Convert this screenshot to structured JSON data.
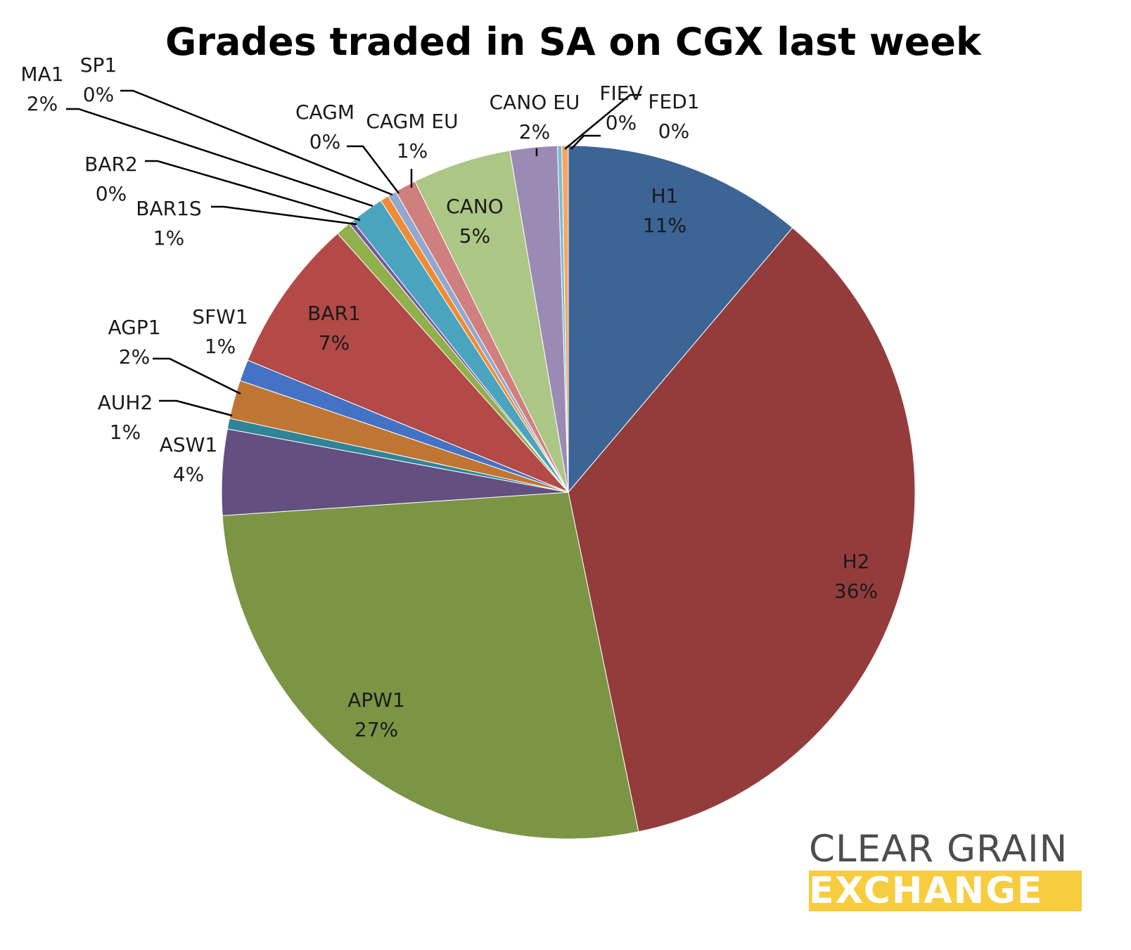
{
  "chart_data": {
    "type": "pie",
    "title": "Grades traded in SA on CGX last week",
    "start_angle": "12 o'clock",
    "direction": "clockwise",
    "slices": [
      {
        "name": "H1",
        "value": 11.2,
        "label": "11%",
        "color": "#3c6494"
      },
      {
        "name": "H2",
        "value": 35.6,
        "label": "36%",
        "color": "#943c3c"
      },
      {
        "name": "APW1",
        "value": 27.2,
        "label": "27%",
        "color": "#7b9545"
      },
      {
        "name": "ASW1",
        "value": 4.0,
        "label": "4%",
        "color": "#634f80"
      },
      {
        "name": "AUH2",
        "value": 0.5,
        "label": "1%",
        "color": "#2f8497"
      },
      {
        "name": "AGP1",
        "value": 1.8,
        "label": "2%",
        "color": "#c07533"
      },
      {
        "name": "SFW1",
        "value": 1.0,
        "label": "1%",
        "color": "#4472c4"
      },
      {
        "name": "BAR1",
        "value": 7.2,
        "label": "7%",
        "color": "#b34a47"
      },
      {
        "name": "BAR1S",
        "value": 0.7,
        "label": "1%",
        "color": "#8fb04a"
      },
      {
        "name": "BAR2",
        "value": 0.2,
        "label": "0%",
        "color": "#7952a0"
      },
      {
        "name": "MA1",
        "value": 1.6,
        "label": "2%",
        "color": "#4ba4bd"
      },
      {
        "name": "SP1",
        "value": 0.4,
        "label": "0%",
        "color": "#ee8c35"
      },
      {
        "name": "CAGM",
        "value": 0.4,
        "label": "0%",
        "color": "#91a8d0"
      },
      {
        "name": "CAGM EU",
        "value": 1.0,
        "label": "1%",
        "color": "#d07f7f"
      },
      {
        "name": "CANO",
        "value": 4.6,
        "label": "5%",
        "color": "#acc685"
      },
      {
        "name": "CANO EU",
        "value": 2.2,
        "label": "2%",
        "color": "#9b8bb4"
      },
      {
        "name": "FIEV",
        "value": 0.2,
        "label": "0%",
        "color": "#7bbdd1"
      },
      {
        "name": "FED1",
        "value": 0.3,
        "label": "0%",
        "color": "#f7a561"
      }
    ]
  },
  "logo": {
    "line1": "CLEAR GRAIN",
    "line2": "EXCHANGE",
    "colors": {
      "line1": "#4d4d4d",
      "band": "#f7cc3e",
      "line2": "#ffffff"
    }
  }
}
